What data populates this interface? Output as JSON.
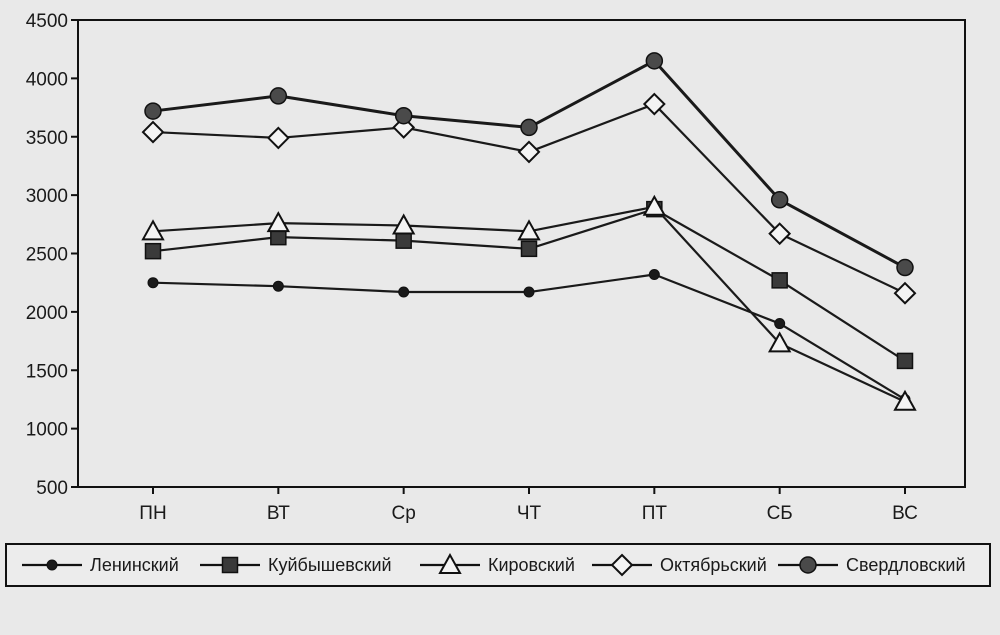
{
  "chart_data": {
    "type": "line",
    "title": "",
    "xlabel": "",
    "ylabel": "",
    "categories": [
      "ПН",
      "ВТ",
      "Ср",
      "ЧТ",
      "ПТ",
      "СБ",
      "ВС"
    ],
    "ylim": [
      500,
      4500
    ],
    "yticks": [
      500,
      1000,
      1500,
      2000,
      2500,
      3000,
      3500,
      4000,
      4500
    ],
    "grid": false,
    "legend_position": "bottom",
    "series": [
      {
        "name": "Ленинский",
        "marker": "small-dot",
        "color": "#1a1a1a",
        "values": [
          2250,
          2220,
          2170,
          2170,
          2320,
          1900,
          1250
        ]
      },
      {
        "name": "Куйбышевский",
        "marker": "filled-square",
        "color": "#3a3a3a",
        "values": [
          2520,
          2640,
          2610,
          2540,
          2880,
          2270,
          1580
        ]
      },
      {
        "name": "Кировский",
        "marker": "open-triangle",
        "color": "#1a1a1a",
        "values": [
          2690,
          2760,
          2740,
          2690,
          2900,
          1730,
          1230
        ]
      },
      {
        "name": "Октябрьский",
        "marker": "open-diamond",
        "color": "#1a1a1a",
        "values": [
          3540,
          3490,
          3580,
          3370,
          3780,
          2670,
          2160
        ]
      },
      {
        "name": "Свердловский",
        "marker": "filled-circle",
        "color": "#4a4a4a",
        "values": [
          3720,
          3850,
          3680,
          3580,
          4150,
          2960,
          2380
        ]
      }
    ]
  }
}
